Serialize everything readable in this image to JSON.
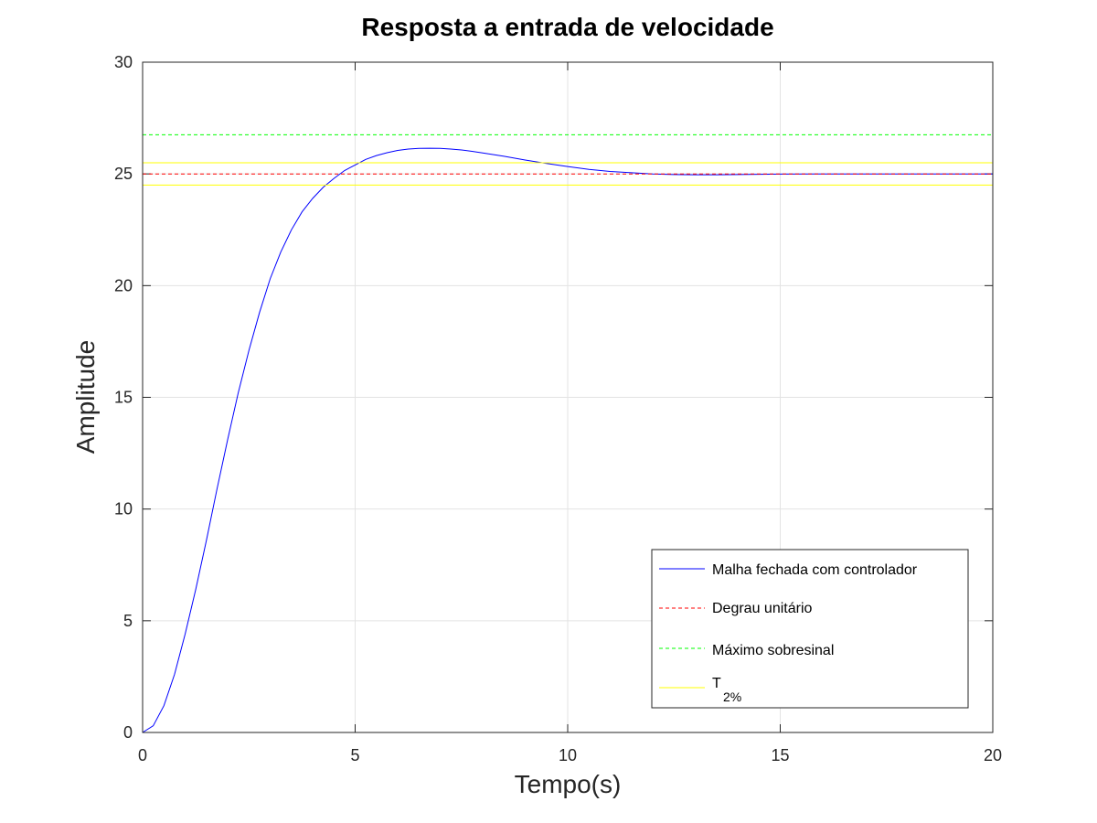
{
  "chart_data": {
    "type": "line",
    "title": "Resposta a entrada de velocidade",
    "xlabel": "Tempo(s)",
    "ylabel": "Amplitude",
    "xlim": [
      0,
      20
    ],
    "ylim": [
      0,
      30
    ],
    "xticks": [
      "0",
      "5",
      "10",
      "15",
      "20"
    ],
    "yticks": [
      "0",
      "5",
      "10",
      "15",
      "20",
      "25",
      "30"
    ],
    "grid": true,
    "legend_position": "bottom-right",
    "series": [
      {
        "name": "Malha fechada com controlador",
        "color": "#0000ff",
        "style": "solid",
        "x": [
          0,
          0.25,
          0.5,
          0.75,
          1,
          1.25,
          1.5,
          1.75,
          2,
          2.25,
          2.5,
          2.75,
          3,
          3.25,
          3.5,
          3.75,
          4,
          4.25,
          4.5,
          4.75,
          5,
          5.25,
          5.5,
          5.75,
          6,
          6.25,
          6.5,
          6.75,
          7,
          7.25,
          7.5,
          7.75,
          8,
          8.5,
          9,
          9.5,
          10,
          10.5,
          11,
          11.5,
          12,
          12.5,
          13,
          13.5,
          14,
          15,
          16,
          17,
          18,
          19,
          20
        ],
        "y": [
          0,
          0.3,
          1.2,
          2.6,
          4.4,
          6.4,
          8.6,
          10.9,
          13.1,
          15.2,
          17.1,
          18.8,
          20.3,
          21.5,
          22.5,
          23.3,
          23.9,
          24.4,
          24.8,
          25.15,
          25.4,
          25.65,
          25.82,
          25.95,
          26.05,
          26.11,
          26.14,
          26.15,
          26.14,
          26.11,
          26.07,
          26.01,
          25.94,
          25.79,
          25.62,
          25.47,
          25.33,
          25.2,
          25.11,
          25.05,
          25.0,
          24.97,
          24.96,
          24.96,
          24.97,
          24.99,
          25.0,
          25.0,
          25.0,
          25.0,
          25.0
        ]
      },
      {
        "name": "Degrau unitário",
        "color": "#ff0000",
        "style": "dashed",
        "x": [
          0,
          20
        ],
        "y": [
          25,
          25
        ]
      },
      {
        "name": "Máximo sobresinal",
        "color": "#00ff00",
        "style": "dashed",
        "x": [
          0,
          20
        ],
        "y": [
          26.75,
          26.75
        ]
      },
      {
        "name": "T",
        "name_subscript": "2%",
        "color": "#ffff00",
        "style": "solid",
        "x": [
          0,
          20
        ],
        "y": [
          25.5,
          25.5
        ]
      },
      {
        "name": "",
        "color": "#ffff00",
        "style": "solid",
        "x": [
          0,
          20
        ],
        "y": [
          24.5,
          24.5
        ],
        "legend": false
      }
    ]
  }
}
